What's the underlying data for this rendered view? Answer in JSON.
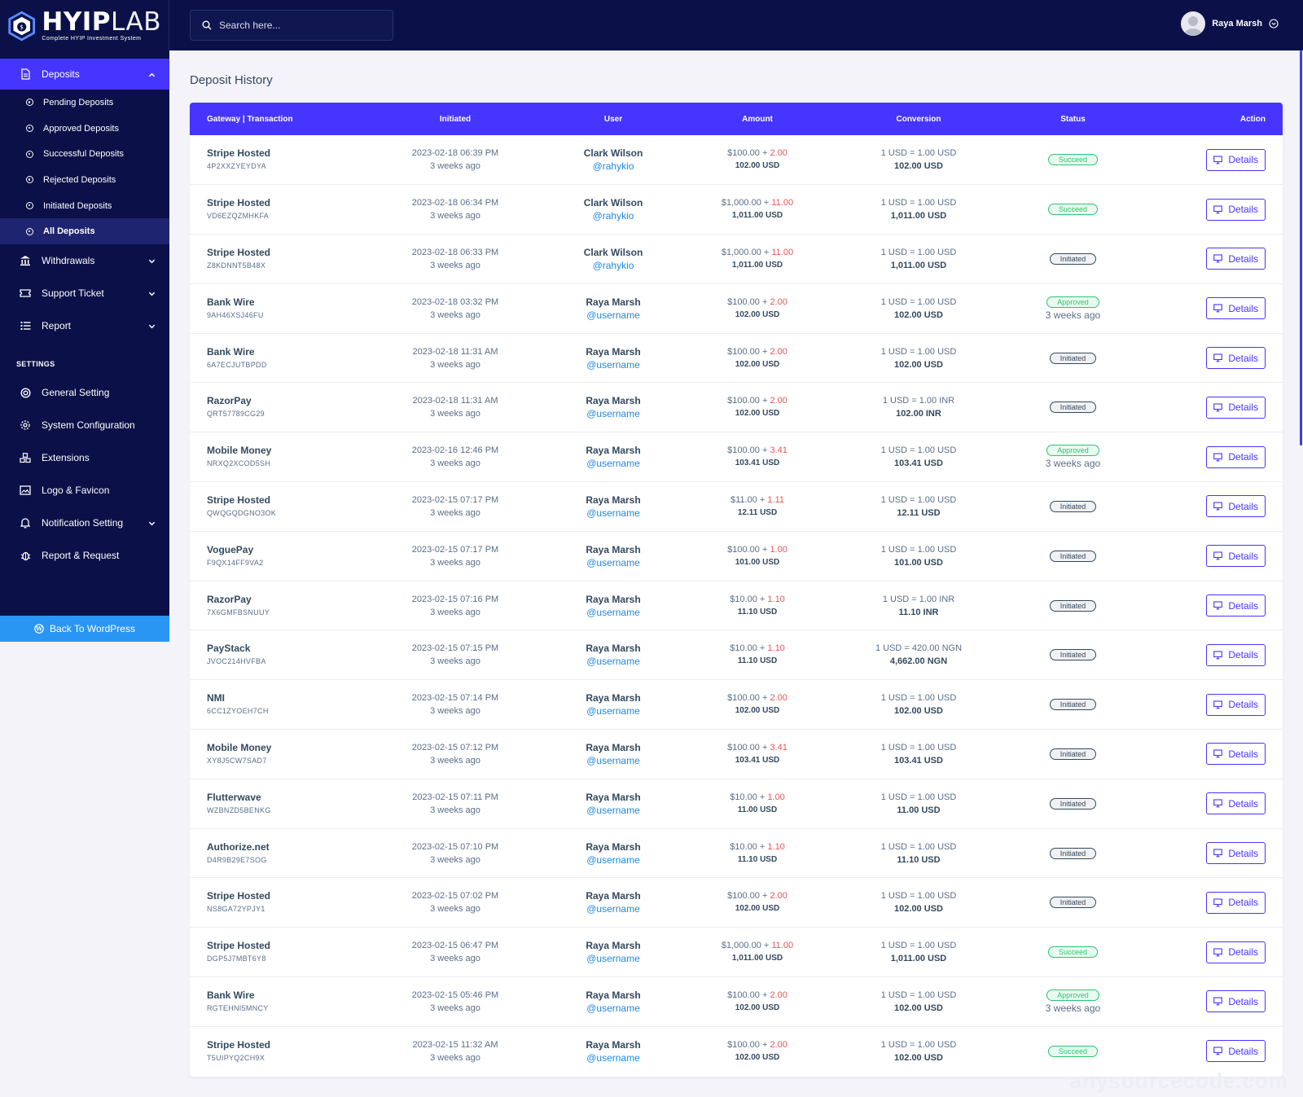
{
  "brand": {
    "name_bold": "HYIP",
    "name_light": "LAB",
    "tagline": "Complete HYIP Investment System"
  },
  "search": {
    "placeholder": "Search here..."
  },
  "user": {
    "name": "Raya Marsh"
  },
  "sidebar": {
    "deposits_label": "Deposits",
    "deposit_items": [
      "Pending Deposits",
      "Approved Deposits",
      "Successful Deposits",
      "Rejected Deposits",
      "Initiated Deposits",
      "All Deposits"
    ],
    "withdrawals_label": "Withdrawals",
    "support_label": "Support Ticket",
    "report_label": "Report",
    "settings_title": "SETTINGS",
    "settings_items": [
      "General Setting",
      "System Configuration",
      "Extensions",
      "Logo & Favicon",
      "Notification Setting",
      "Report & Request"
    ],
    "back_label": "Back To WordPress"
  },
  "page": {
    "title": "Deposit History"
  },
  "table": {
    "headers": [
      "Gateway | Transaction",
      "Initiated",
      "User",
      "Amount",
      "Conversion",
      "Status",
      "Action"
    ],
    "details_label": "Details",
    "rows": [
      {
        "gateway": "Stripe Hosted",
        "trx": "4P2XXZYEYDYA",
        "date": "2023-02-18 06:39 PM",
        "ago": "3 weeks ago",
        "user": "Clark Wilson",
        "handle": "@rahykio",
        "amount": "$100.00",
        "charge": "2.00",
        "total": "102.00 USD",
        "rate": "1 USD = 1.00 USD",
        "converted": "102.00 USD",
        "status": "Succeed",
        "status_time": ""
      },
      {
        "gateway": "Stripe Hosted",
        "trx": "VD6EZQZMHKFA",
        "date": "2023-02-18 06:34 PM",
        "ago": "3 weeks ago",
        "user": "Clark Wilson",
        "handle": "@rahykio",
        "amount": "$1,000.00",
        "charge": "11.00",
        "total": "1,011.00 USD",
        "rate": "1 USD = 1.00 USD",
        "converted": "1,011.00 USD",
        "status": "Succeed",
        "status_time": ""
      },
      {
        "gateway": "Stripe Hosted",
        "trx": "Z8KDNNT5B48X",
        "date": "2023-02-18 06:33 PM",
        "ago": "3 weeks ago",
        "user": "Clark Wilson",
        "handle": "@rahykio",
        "amount": "$1,000.00",
        "charge": "11.00",
        "total": "1,011.00 USD",
        "rate": "1 USD = 1.00 USD",
        "converted": "1,011.00 USD",
        "status": "Initiated",
        "status_time": ""
      },
      {
        "gateway": "Bank Wire",
        "trx": "9AH46XSJ46FU",
        "date": "2023-02-18 03:32 PM",
        "ago": "3 weeks ago",
        "user": "Raya Marsh",
        "handle": "@username",
        "amount": "$100.00",
        "charge": "2.00",
        "total": "102.00 USD",
        "rate": "1 USD = 1.00 USD",
        "converted": "102.00 USD",
        "status": "Approved",
        "status_time": "3 weeks ago"
      },
      {
        "gateway": "Bank Wire",
        "trx": "6A7ECJUTBPDD",
        "date": "2023-02-18 11:31 AM",
        "ago": "3 weeks ago",
        "user": "Raya Marsh",
        "handle": "@username",
        "amount": "$100.00",
        "charge": "2.00",
        "total": "102.00 USD",
        "rate": "1 USD = 1.00 USD",
        "converted": "102.00 USD",
        "status": "Initiated",
        "status_time": ""
      },
      {
        "gateway": "RazorPay",
        "trx": "QRT57789CG29",
        "date": "2023-02-18 11:31 AM",
        "ago": "3 weeks ago",
        "user": "Raya Marsh",
        "handle": "@username",
        "amount": "$100.00",
        "charge": "2.00",
        "total": "102.00 USD",
        "rate": "1 USD = 1.00 INR",
        "converted": "102.00 INR",
        "status": "Initiated",
        "status_time": ""
      },
      {
        "gateway": "Mobile Money",
        "trx": "NRXQ2XCOD5SH",
        "date": "2023-02-16 12:46 PM",
        "ago": "3 weeks ago",
        "user": "Raya Marsh",
        "handle": "@username",
        "amount": "$100.00",
        "charge": "3.41",
        "total": "103.41 USD",
        "rate": "1 USD = 1.00 USD",
        "converted": "103.41 USD",
        "status": "Approved",
        "status_time": "3 weeks ago"
      },
      {
        "gateway": "Stripe Hosted",
        "trx": "QWQGQDGNO3OK",
        "date": "2023-02-15 07:17 PM",
        "ago": "3 weeks ago",
        "user": "Raya Marsh",
        "handle": "@username",
        "amount": "$11.00",
        "charge": "1.11",
        "total": "12.11 USD",
        "rate": "1 USD = 1.00 USD",
        "converted": "12.11 USD",
        "status": "Initiated",
        "status_time": ""
      },
      {
        "gateway": "VoguePay",
        "trx": "F9QX14FF9VA2",
        "date": "2023-02-15 07:17 PM",
        "ago": "3 weeks ago",
        "user": "Raya Marsh",
        "handle": "@username",
        "amount": "$100.00",
        "charge": "1.00",
        "total": "101.00 USD",
        "rate": "1 USD = 1.00 USD",
        "converted": "101.00 USD",
        "status": "Initiated",
        "status_time": ""
      },
      {
        "gateway": "RazorPay",
        "trx": "7X6GMFBSNUUY",
        "date": "2023-02-15 07:16 PM",
        "ago": "3 weeks ago",
        "user": "Raya Marsh",
        "handle": "@username",
        "amount": "$10.00",
        "charge": "1.10",
        "total": "11.10 USD",
        "rate": "1 USD = 1.00 INR",
        "converted": "11.10 INR",
        "status": "Initiated",
        "status_time": ""
      },
      {
        "gateway": "PayStack",
        "trx": "JVOC214HVFBA",
        "date": "2023-02-15 07:15 PM",
        "ago": "3 weeks ago",
        "user": "Raya Marsh",
        "handle": "@username",
        "amount": "$10.00",
        "charge": "1.10",
        "total": "11.10 USD",
        "rate": "1 USD = 420.00 NGN",
        "converted": "4,662.00 NGN",
        "status": "Initiated",
        "status_time": ""
      },
      {
        "gateway": "NMI",
        "trx": "6CC1ZYOEH7CH",
        "date": "2023-02-15 07:14 PM",
        "ago": "3 weeks ago",
        "user": "Raya Marsh",
        "handle": "@username",
        "amount": "$100.00",
        "charge": "2.00",
        "total": "102.00 USD",
        "rate": "1 USD = 1.00 USD",
        "converted": "102.00 USD",
        "status": "Initiated",
        "status_time": ""
      },
      {
        "gateway": "Mobile Money",
        "trx": "XY8J5CW7SAD7",
        "date": "2023-02-15 07:12 PM",
        "ago": "3 weeks ago",
        "user": "Raya Marsh",
        "handle": "@username",
        "amount": "$100.00",
        "charge": "3.41",
        "total": "103.41 USD",
        "rate": "1 USD = 1.00 USD",
        "converted": "103.41 USD",
        "status": "Initiated",
        "status_time": ""
      },
      {
        "gateway": "Flutterwave",
        "trx": "WZBNZD5BENKG",
        "date": "2023-02-15 07:11 PM",
        "ago": "3 weeks ago",
        "user": "Raya Marsh",
        "handle": "@username",
        "amount": "$10.00",
        "charge": "1.00",
        "total": "11.00 USD",
        "rate": "1 USD = 1.00 USD",
        "converted": "11.00 USD",
        "status": "Initiated",
        "status_time": ""
      },
      {
        "gateway": "Authorize.net",
        "trx": "D4R9B29E7SOG",
        "date": "2023-02-15 07:10 PM",
        "ago": "3 weeks ago",
        "user": "Raya Marsh",
        "handle": "@username",
        "amount": "$10.00",
        "charge": "1.10",
        "total": "11.10 USD",
        "rate": "1 USD = 1.00 USD",
        "converted": "11.10 USD",
        "status": "Initiated",
        "status_time": ""
      },
      {
        "gateway": "Stripe Hosted",
        "trx": "NS8GA72YPJY1",
        "date": "2023-02-15 07:02 PM",
        "ago": "3 weeks ago",
        "user": "Raya Marsh",
        "handle": "@username",
        "amount": "$100.00",
        "charge": "2.00",
        "total": "102.00 USD",
        "rate": "1 USD = 1.00 USD",
        "converted": "102.00 USD",
        "status": "Initiated",
        "status_time": ""
      },
      {
        "gateway": "Stripe Hosted",
        "trx": "DGP5J7MBT6Y8",
        "date": "2023-02-15 06:47 PM",
        "ago": "3 weeks ago",
        "user": "Raya Marsh",
        "handle": "@username",
        "amount": "$1,000.00",
        "charge": "11.00",
        "total": "1,011.00 USD",
        "rate": "1 USD = 1.00 USD",
        "converted": "1,011.00 USD",
        "status": "Succeed",
        "status_time": ""
      },
      {
        "gateway": "Bank Wire",
        "trx": "RGTEHNI5MNCY",
        "date": "2023-02-15 05:46 PM",
        "ago": "3 weeks ago",
        "user": "Raya Marsh",
        "handle": "@username",
        "amount": "$100.00",
        "charge": "2.00",
        "total": "102.00 USD",
        "rate": "1 USD = 1.00 USD",
        "converted": "102.00 USD",
        "status": "Approved",
        "status_time": "3 weeks ago"
      },
      {
        "gateway": "Stripe Hosted",
        "trx": "T5UIPYQ2CH9X",
        "date": "2023-02-15 11:32 AM",
        "ago": "3 weeks ago",
        "user": "Raya Marsh",
        "handle": "@username",
        "amount": "$100.00",
        "charge": "2.00",
        "total": "102.00 USD",
        "rate": "1 USD = 1.00 USD",
        "converted": "102.00 USD",
        "status": "Succeed",
        "status_time": ""
      }
    ]
  },
  "watermark": "anysourcecode.com",
  "colors": {
    "navy": "#0b1148",
    "primary": "#4634ff",
    "success": "#28c76f",
    "danger": "#ea5455",
    "link": "#1e88e5",
    "wp_blue": "#2a96f4"
  }
}
